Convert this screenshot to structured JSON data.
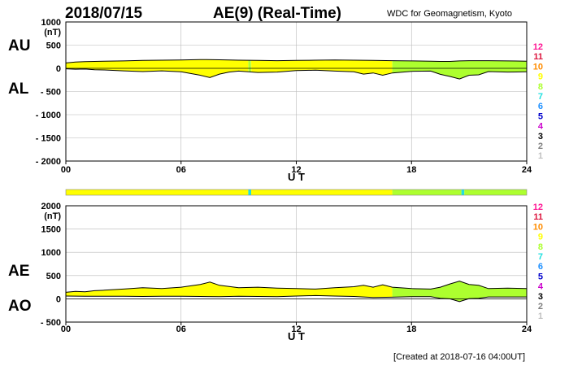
{
  "header": {
    "date": "2018/07/15",
    "index_title": "AE(9)  (Real-Time)",
    "source": "WDC for Geomagnetism, Kyoto"
  },
  "footer": {
    "created": "[Created at 2018-07-16 04:00UT]"
  },
  "level_colors": {
    "12": "#ff1493",
    "11": "#dc143c",
    "10": "#ff8c00",
    "9": "#ffff00",
    "8": "#adff2f",
    "7": "#20e0e0",
    "6": "#1e90ff",
    "5": "#0000cd",
    "4": "#cc00cc",
    "3": "#000000",
    "2": "#808080",
    "1": "#c0c0c0"
  },
  "chart_data": [
    {
      "type": "area",
      "name": "AU-AL",
      "side_labels": [
        "AU",
        "AL"
      ],
      "unit": "(nT)",
      "xlabel": "U T",
      "xlim": [
        0,
        24
      ],
      "ylim": [
        -2000,
        1000
      ],
      "x_ticks": [
        "00",
        "06",
        "12",
        "18",
        "24"
      ],
      "y_ticks": [
        "1000",
        "500",
        "0",
        "- 500",
        "- 1000",
        "- 1500",
        "- 2000"
      ],
      "legend": [
        "12",
        "11",
        "10",
        "9",
        "8",
        "7",
        "6",
        "5",
        "4",
        "3",
        "2",
        "1"
      ],
      "upper": {
        "x": [
          0,
          0.5,
          1,
          1.5,
          2,
          3,
          4,
          5,
          6,
          7,
          8,
          9,
          10,
          11,
          12,
          13,
          14,
          15,
          16,
          17,
          18,
          19,
          19.5,
          20,
          20.5,
          21,
          22,
          23,
          24
        ],
        "y": [
          115,
          135,
          145,
          150,
          155,
          160,
          170,
          175,
          180,
          190,
          185,
          175,
          170,
          165,
          170,
          175,
          180,
          175,
          170,
          165,
          160,
          155,
          150,
          150,
          160,
          165,
          165,
          160,
          155
        ]
      },
      "lower": {
        "x": [
          0,
          0.5,
          1,
          1.5,
          2,
          3,
          4,
          5,
          6,
          7,
          7.5,
          8,
          8.5,
          9,
          10,
          11,
          12,
          13,
          14,
          15,
          15.5,
          16,
          16.5,
          17,
          18,
          19,
          19.5,
          20,
          20.5,
          21,
          21.5,
          22,
          23,
          24
        ],
        "y": [
          -10,
          -20,
          -15,
          -30,
          -35,
          -55,
          -70,
          -55,
          -75,
          -150,
          -200,
          -125,
          -80,
          -60,
          -90,
          -80,
          -50,
          -40,
          -60,
          -75,
          -125,
          -100,
          -150,
          -100,
          -65,
          -60,
          -130,
          -175,
          -230,
          -150,
          -140,
          -70,
          -80,
          -75
        ]
      },
      "activity_segments": [
        {
          "start": 0,
          "end": 9.5,
          "level": "9"
        },
        {
          "start": 9.5,
          "end": 9.65,
          "level": "8"
        },
        {
          "start": 9.65,
          "end": 17,
          "level": "9"
        },
        {
          "start": 17,
          "end": 24,
          "level": "8"
        }
      ]
    },
    {
      "type": "area",
      "name": "AE-AO",
      "side_labels": [
        "AE",
        "AO"
      ],
      "unit": "(nT)",
      "xlabel": "U T",
      "xlim": [
        0,
        24
      ],
      "ylim": [
        -500,
        2000
      ],
      "x_ticks": [
        "00",
        "06",
        "12",
        "18",
        "24"
      ],
      "y_ticks": [
        "2000",
        "1500",
        "1000",
        "500",
        "0",
        "- 500"
      ],
      "legend": [
        "12",
        "11",
        "10",
        "9",
        "8",
        "7",
        "6",
        "5",
        "4",
        "3",
        "2",
        "1"
      ],
      "upper": {
        "x": [
          0,
          0.5,
          1,
          1.5,
          2,
          3,
          4,
          5,
          6,
          7,
          7.5,
          8,
          9,
          10,
          11,
          12,
          13,
          14,
          15,
          15.5,
          16,
          16.5,
          17,
          18,
          19,
          19.5,
          20,
          20.5,
          21,
          21.5,
          22,
          23,
          24
        ],
        "y": [
          140,
          160,
          150,
          175,
          185,
          210,
          240,
          220,
          250,
          310,
          360,
          290,
          240,
          250,
          230,
          220,
          210,
          240,
          260,
          290,
          250,
          300,
          250,
          220,
          210,
          250,
          320,
          380,
          310,
          290,
          220,
          230,
          220
        ]
      },
      "lower": {
        "x": [
          0,
          1,
          2,
          3,
          4,
          5,
          6,
          7,
          8,
          9,
          10,
          11,
          12,
          13,
          14,
          15,
          16,
          17,
          18,
          19,
          19.5,
          20,
          20.5,
          21,
          21.5,
          22,
          23,
          24
        ],
        "y": [
          60,
          55,
          55,
          55,
          50,
          55,
          55,
          50,
          45,
          55,
          50,
          45,
          60,
          70,
          60,
          50,
          30,
          35,
          45,
          45,
          10,
          0,
          -60,
          5,
          10,
          40,
          40,
          40
        ]
      },
      "activity_segments": [
        {
          "start": 0,
          "end": 17,
          "level": "9"
        },
        {
          "start": 17,
          "end": 24,
          "level": "8"
        }
      ]
    }
  ],
  "activity_bar": [
    {
      "start": 0,
      "end": 9.5,
      "level": "9"
    },
    {
      "start": 9.5,
      "end": 9.65,
      "level": "7"
    },
    {
      "start": 9.65,
      "end": 17,
      "level": "9"
    },
    {
      "start": 17,
      "end": 20.6,
      "level": "8"
    },
    {
      "start": 20.6,
      "end": 20.75,
      "level": "7"
    },
    {
      "start": 20.75,
      "end": 24,
      "level": "8"
    }
  ]
}
